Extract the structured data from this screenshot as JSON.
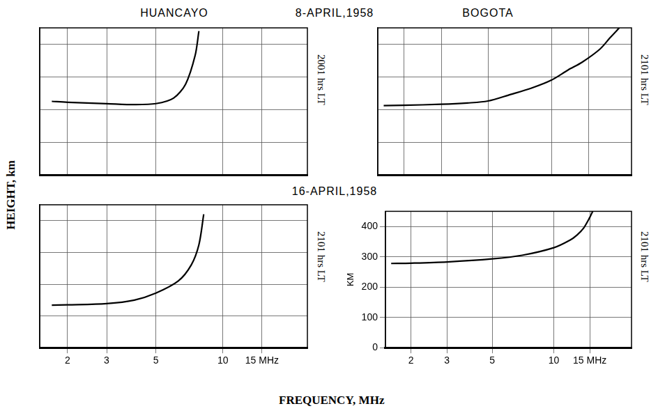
{
  "figure": {
    "header": [
      "HUANCAYO",
      "8-APRIL,1958",
      "BOGOTA"
    ],
    "subheader": "16-APRIL,1958",
    "xlabel": "FREQUENCY, MHz",
    "ylabel": "HEIGHT, km"
  },
  "chart_data": [
    {
      "type": "line",
      "side_label": "2001 hrs LT",
      "color": "#000000",
      "x": [
        1.7,
        2,
        3,
        4,
        5,
        6,
        6.8,
        7.5,
        7.8
      ],
      "values": [
        225,
        222,
        218,
        215,
        218,
        235,
        278,
        365,
        440
      ],
      "log": "x",
      "xlim": [
        1.5,
        24
      ],
      "xticks": [
        2,
        3,
        5,
        10,
        {
          "value": 15,
          "label": "15 MHz"
        }
      ],
      "ylim": [
        0,
        450
      ],
      "yticks": [
        0,
        100,
        200,
        300,
        400
      ],
      "grid": true,
      "tick_labels": false
    },
    {
      "type": "line",
      "side_label": "2101 hrs LT",
      "color": "#000000",
      "x": [
        1.6,
        2,
        3,
        4,
        5,
        6.4,
        8,
        10,
        12,
        14,
        17,
        19,
        21
      ],
      "values": [
        212,
        213,
        216,
        220,
        226,
        246,
        265,
        290,
        321,
        345,
        385,
        420,
        450
      ],
      "log": "x",
      "xlim": [
        1.5,
        24
      ],
      "xticks": [
        2,
        3,
        5,
        10,
        {
          "value": 15,
          "label": "15 MHz"
        }
      ],
      "ylim": [
        0,
        450
      ],
      "yticks": [
        0,
        100,
        200,
        300,
        400
      ],
      "grid": true,
      "tick_labels": false
    },
    {
      "type": "line",
      "side_label": "2101 hrs LT",
      "color": "#000000",
      "x": [
        1.7,
        2,
        3,
        4,
        5,
        6.3,
        7.2,
        7.8,
        8.2
      ],
      "values": [
        134,
        135,
        139,
        150,
        172,
        210,
        260,
        324,
        420
      ],
      "log": "x",
      "xlim": [
        1.5,
        24
      ],
      "xticks": [
        2,
        3,
        5,
        10,
        {
          "value": 15,
          "label": "15 MHz"
        }
      ],
      "ylim": [
        0,
        450
      ],
      "yticks": [
        0,
        100,
        200,
        300,
        400
      ],
      "grid": true,
      "tick_labels": "x"
    },
    {
      "type": "line",
      "side_label": "2101 hrs LT",
      "color": "#000000",
      "ylabel": "KM",
      "x": [
        1.6,
        2,
        3,
        5,
        7,
        10,
        12,
        13,
        14,
        15,
        15.5
      ],
      "values": [
        278,
        279,
        283,
        293,
        305,
        330,
        355,
        372,
        395,
        430,
        450
      ],
      "log": "x",
      "xlim": [
        1.5,
        24
      ],
      "xticks": [
        2,
        3,
        5,
        10,
        {
          "value": 15,
          "label": "15 MHz"
        }
      ],
      "ylim": [
        0,
        450
      ],
      "yticks": [
        0,
        100,
        200,
        300,
        400
      ],
      "grid": true,
      "tick_labels": true
    }
  ]
}
